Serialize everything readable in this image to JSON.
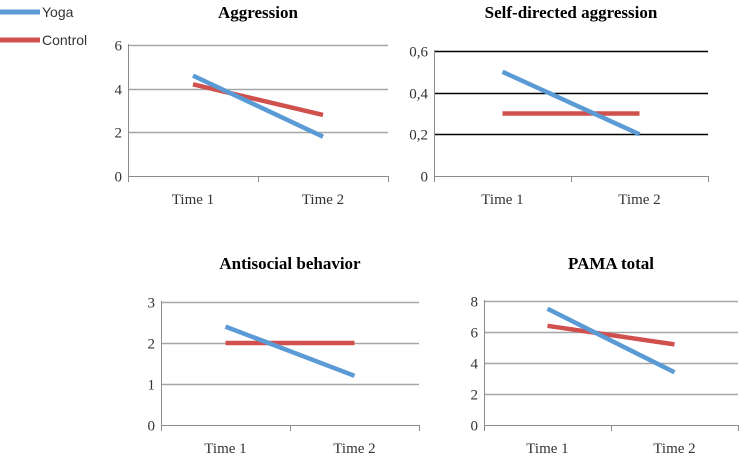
{
  "legend": {
    "items": [
      {
        "name": "Yoga",
        "color": "#5b9bd5"
      },
      {
        "name": "Control",
        "color": "#d0504d"
      }
    ]
  },
  "chart_data": [
    {
      "type": "line",
      "title": "Aggression",
      "categories": [
        "Time 1",
        "Time 2"
      ],
      "y_ticks": [
        "0",
        "2",
        "4",
        "6"
      ],
      "ylim": [
        0,
        6
      ],
      "grid_color": "#a6a6a6",
      "series": [
        {
          "name": "Yoga",
          "values": [
            4.6,
            1.8
          ]
        },
        {
          "name": "Control",
          "values": [
            4.2,
            2.8
          ]
        }
      ]
    },
    {
      "type": "line",
      "title": "Self-directed aggression",
      "categories": [
        "Time 1",
        "Time 2"
      ],
      "y_ticks": [
        "0",
        "0,2",
        "0,4",
        "0,6"
      ],
      "ylim": [
        0,
        0.6
      ],
      "grid_color": "#000000",
      "series": [
        {
          "name": "Yoga",
          "values": [
            0.5,
            0.2
          ]
        },
        {
          "name": "Control",
          "values": [
            0.3,
            0.3
          ]
        }
      ]
    },
    {
      "type": "line",
      "title": "Antisocial behavior",
      "categories": [
        "Time 1",
        "Time 2"
      ],
      "y_ticks": [
        "0",
        "1",
        "2",
        "3"
      ],
      "ylim": [
        0,
        3
      ],
      "grid_color": "#a6a6a6",
      "series": [
        {
          "name": "Yoga",
          "values": [
            2.4,
            1.2
          ]
        },
        {
          "name": "Control",
          "values": [
            2.0,
            2.0
          ]
        }
      ]
    },
    {
      "type": "line",
      "title": "PAMA total",
      "categories": [
        "Time 1",
        "Time 2"
      ],
      "y_ticks": [
        "0",
        "2",
        "4",
        "6",
        "8"
      ],
      "ylim": [
        0,
        8
      ],
      "grid_color": "#a6a6a6",
      "series": [
        {
          "name": "Yoga",
          "values": [
            7.5,
            3.4
          ]
        },
        {
          "name": "Control",
          "values": [
            6.4,
            5.2
          ]
        }
      ]
    }
  ]
}
